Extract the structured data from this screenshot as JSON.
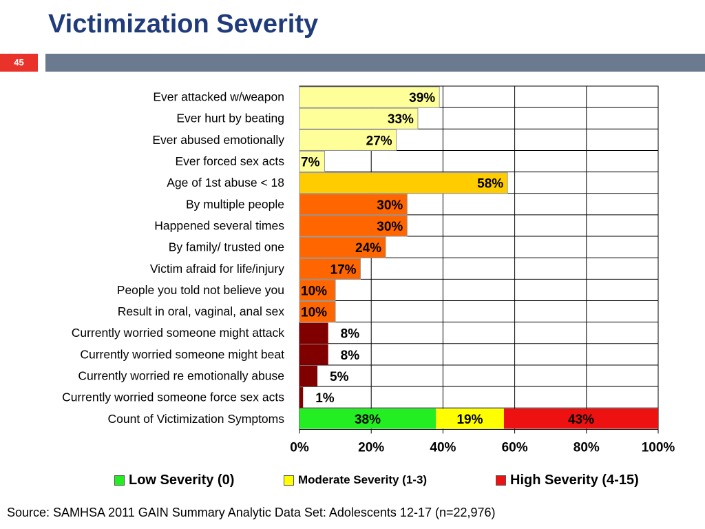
{
  "slide": {
    "title": "Victimization Severity",
    "number": "45",
    "source": "Source: SAMHSA 2011 GAIN Summary Analytic Data Set: Adolescents 12-17 (n=22,976)"
  },
  "colors": {
    "title": "#1f3b7a",
    "band": "#6b7a8f",
    "slide_number_bg": "#e8322a",
    "light_yellow": "#ffff99",
    "gold": "#ffcc00",
    "orange": "#ff6600",
    "dark_red": "#800000",
    "green": "#22ee22",
    "yellow": "#ffff00",
    "red": "#ee1111"
  },
  "chart_data": {
    "type": "bar",
    "orientation": "horizontal",
    "xlim": [
      0,
      100
    ],
    "x_ticks": [
      "0%",
      "20%",
      "40%",
      "60%",
      "80%",
      "100%"
    ],
    "grid": true,
    "categories": [
      "Ever attacked w/weapon",
      "Ever hurt by beating",
      "Ever abused emotionally",
      "Ever forced sex acts",
      "Age of 1st abuse < 18",
      "By multiple people",
      "Happened several times",
      "By family/ trusted one",
      "Victim afraid for life/injury",
      "People you told not believe you",
      "Result in oral, vaginal, anal sex",
      "Currently worried someone might attack",
      "Currently worried someone might beat",
      "Currently worried re  emotionally abuse",
      "Currently worried someone force sex acts",
      "Count of Victimization Symptoms"
    ],
    "values": [
      39,
      33,
      27,
      7,
      58,
      30,
      30,
      24,
      17,
      10,
      10,
      8,
      8,
      5,
      1,
      null
    ],
    "labels": [
      "39%",
      "33%",
      "27%",
      "7%",
      "58%",
      "30%",
      "30%",
      "24%",
      "17%",
      "10%",
      "10%",
      "8%",
      "8%",
      "5%",
      "1%",
      ""
    ],
    "bar_colors": [
      "light_yellow",
      "light_yellow",
      "light_yellow",
      "light_yellow",
      "gold",
      "orange",
      "orange",
      "orange",
      "orange",
      "orange",
      "orange",
      "dark_red",
      "dark_red",
      "dark_red",
      "dark_red",
      ""
    ],
    "stacked_row": {
      "category": "Count of Victimization Symptoms",
      "segments": [
        {
          "name": "Low Severity (0)",
          "value": 38,
          "label": "38%",
          "color": "green"
        },
        {
          "name": "Moderate Severity (1-3)",
          "value": 19,
          "label": "19%",
          "color": "yellow"
        },
        {
          "name": "High Severity (4-15)",
          "value": 43,
          "label": "43%",
          "color": "red"
        }
      ]
    },
    "legend_position": "bottom",
    "legend": [
      {
        "label": "Low Severity (0)",
        "color": "green"
      },
      {
        "label": "Moderate Severity (1-3)",
        "color": "yellow"
      },
      {
        "label": "High Severity (4-15)",
        "color": "red"
      }
    ]
  }
}
